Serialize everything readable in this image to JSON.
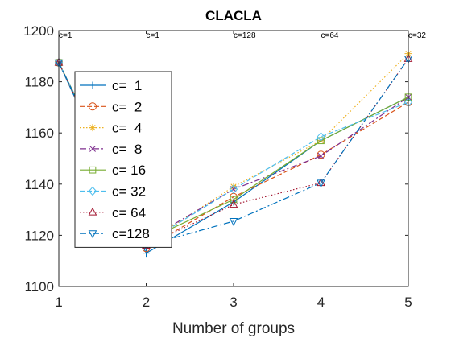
{
  "chart_data": {
    "type": "line",
    "title": "CLACLA",
    "xlabel": "Number of groups",
    "ylabel": "",
    "x": [
      1,
      2,
      3,
      4,
      5
    ],
    "xlim": [
      1,
      5
    ],
    "ylim": [
      1100,
      1200
    ],
    "xticks": [
      "1",
      "2",
      "3",
      "4",
      "5"
    ],
    "yticks": [
      "1100",
      "1120",
      "1140",
      "1160",
      "1180",
      "1200"
    ],
    "grid": false,
    "legend_position": "left",
    "annotations": [
      "c=1",
      "c=1",
      "c=128",
      "c=64",
      "c=32"
    ],
    "series": [
      {
        "name": "c=  1",
        "values": [
          1187.5,
          1113,
          1133,
          1157,
          1174
        ],
        "color": "#0072BD",
        "dash": "solid",
        "marker": "plus"
      },
      {
        "name": "c=  2",
        "values": [
          1187.5,
          1115,
          1135,
          1151.5,
          1172
        ],
        "color": "#D95319",
        "dash": "dashed",
        "marker": "circle"
      },
      {
        "name": "c=  4",
        "values": [
          1187.5,
          1117,
          1139,
          1157,
          1191
        ],
        "color": "#EDB120",
        "dash": "dotted",
        "marker": "asterisk"
      },
      {
        "name": "c=  8",
        "values": [
          1187.5,
          1118,
          1138,
          1151,
          1174
        ],
        "color": "#7E2F8E",
        "dash": "dashdot",
        "marker": "x"
      },
      {
        "name": "c= 16",
        "values": [
          1187.5,
          1118,
          1134,
          1157,
          1174
        ],
        "color": "#77AC30",
        "dash": "solid",
        "marker": "square"
      },
      {
        "name": "c= 32",
        "values": [
          1187.5,
          1117,
          1138,
          1158.5,
          1172
        ],
        "color": "#4DBEEE",
        "dash": "dashed",
        "marker": "diamond"
      },
      {
        "name": "c= 64",
        "values": [
          1187.5,
          1116,
          1132,
          1140.5,
          1189
        ],
        "color": "#A2142F",
        "dash": "dotted",
        "marker": "triangle"
      },
      {
        "name": "c=128",
        "values": [
          1187.5,
          1116,
          1125.5,
          1140.5,
          1189
        ],
        "color": "#0072BD",
        "dash": "dashdot",
        "marker": "triangle-down"
      }
    ]
  }
}
